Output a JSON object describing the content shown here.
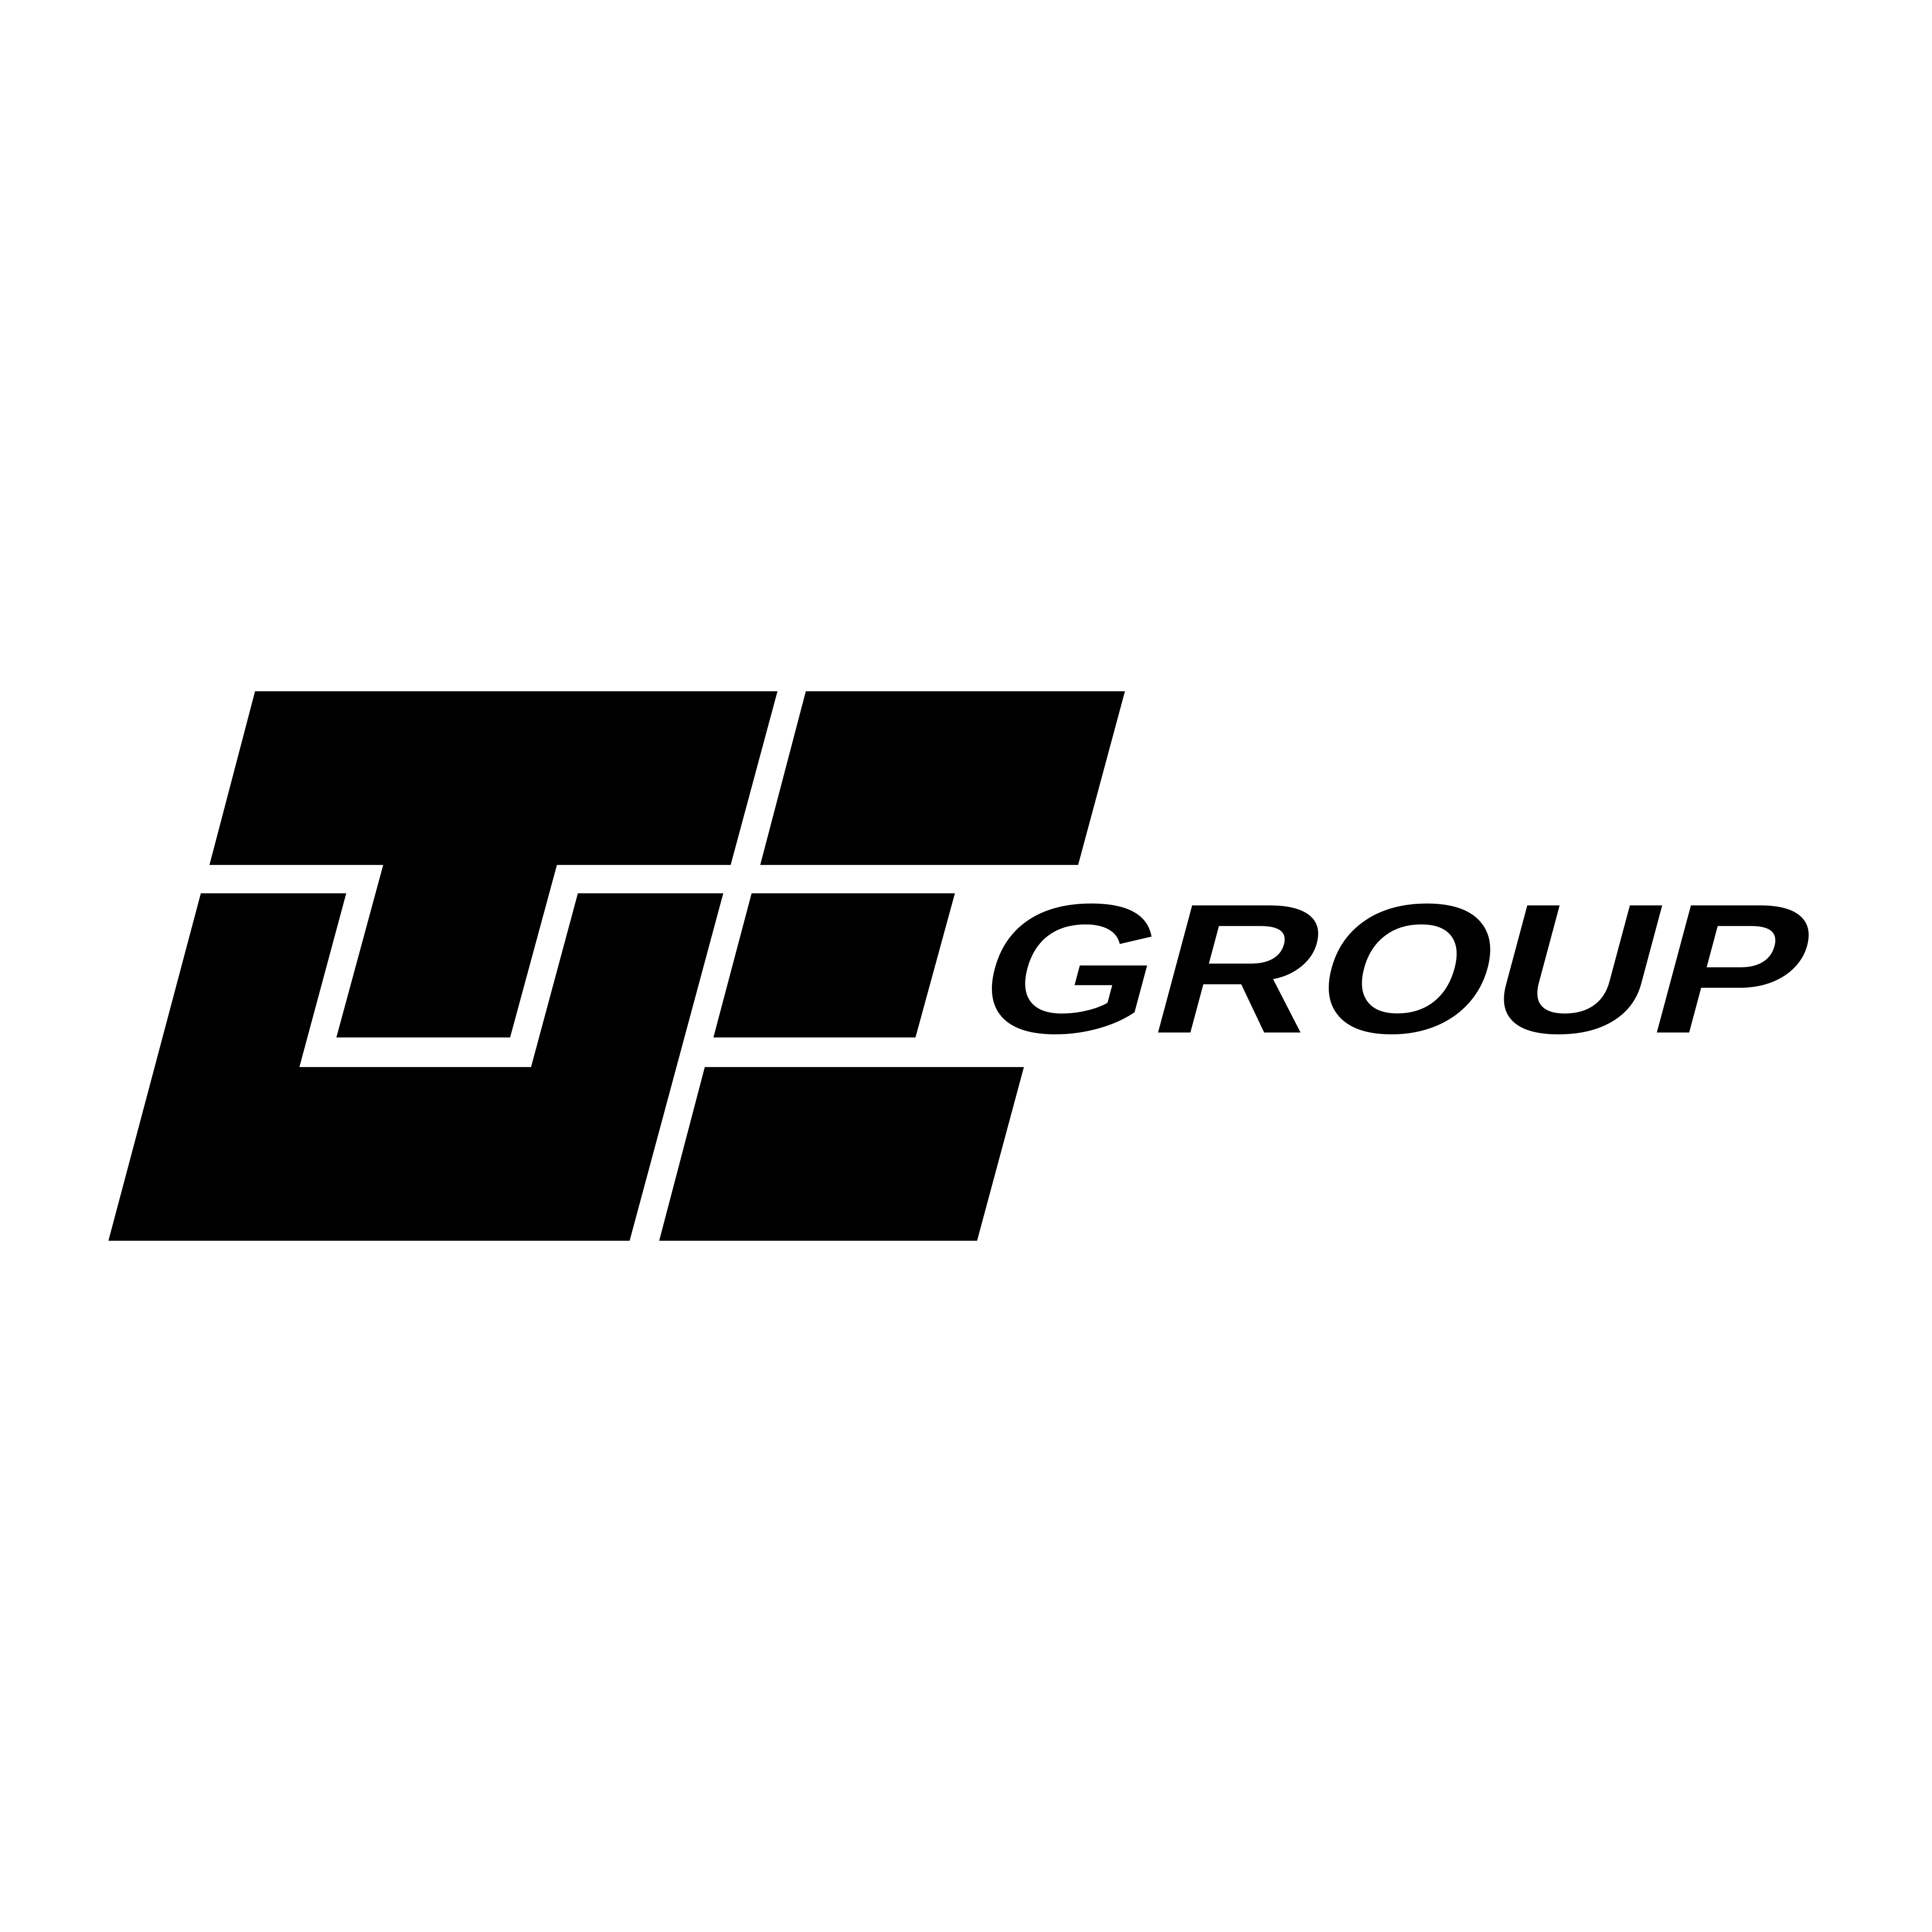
{
  "logo": {
    "wordmark": "GROUP"
  }
}
